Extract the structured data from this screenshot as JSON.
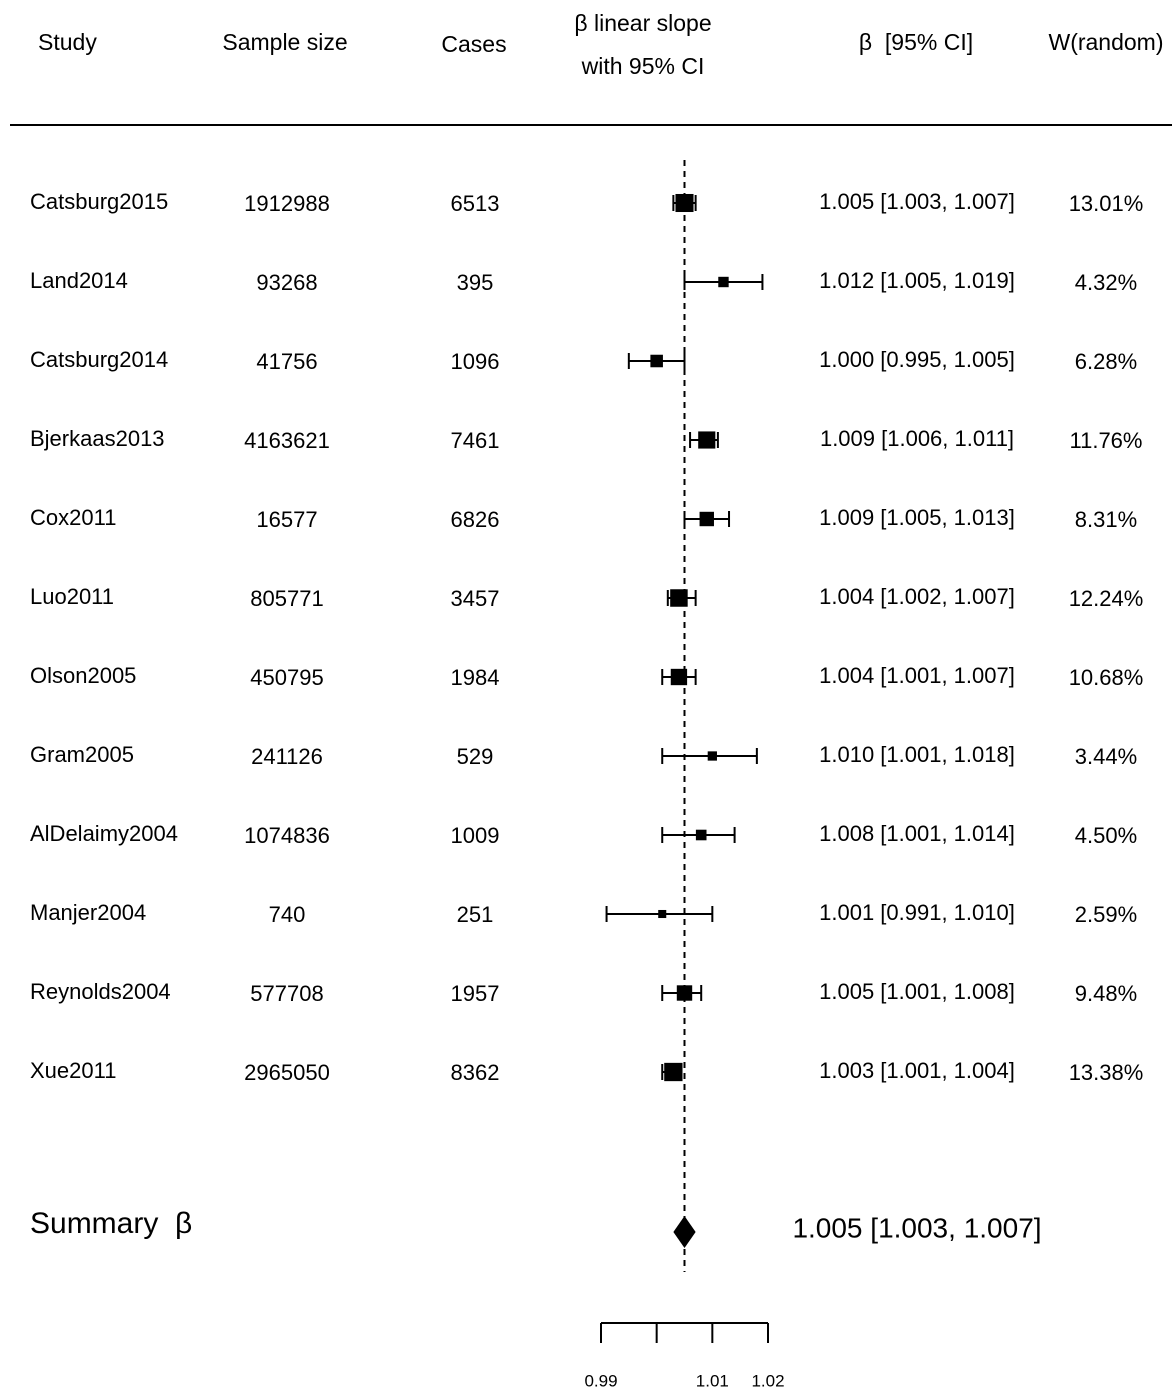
{
  "chart_data": {
    "type": "forest",
    "headers": {
      "study": "Study",
      "sample_size": "Sample size",
      "cases": "Cases",
      "plot": [
        "β linear slope",
        "with 95% CI"
      ],
      "ci": "β  [95% CI]",
      "weight": "W(random)"
    },
    "studies": [
      "Catsburg2015",
      "Land2014",
      "Catsburg2014",
      "Bjerkaas2013",
      "Cox2011",
      "Luo2011",
      "Olson2005",
      "Gram2005",
      "AlDelaimy2004",
      "Manjer2004",
      "Reynolds2004",
      "Xue2011"
    ],
    "sample_sizes": [
      1912988,
      93268,
      41756,
      4163621,
      16577,
      805771,
      450795,
      241126,
      1074836,
      740,
      577708,
      2965050
    ],
    "cases": [
      6513,
      395,
      1096,
      7461,
      6826,
      3457,
      1984,
      529,
      1009,
      251,
      1957,
      8362
    ],
    "estimates": [
      1.005,
      1.012,
      1.0,
      1.009,
      1.009,
      1.004,
      1.004,
      1.01,
      1.008,
      1.001,
      1.005,
      1.003
    ],
    "lower": [
      1.003,
      1.005,
      0.995,
      1.006,
      1.005,
      1.002,
      1.001,
      1.001,
      1.001,
      0.991,
      1.001,
      1.001
    ],
    "upper": [
      1.007,
      1.019,
      1.005,
      1.011,
      1.013,
      1.007,
      1.007,
      1.018,
      1.014,
      1.01,
      1.008,
      1.004
    ],
    "ci_labels": [
      "1.005 [1.003, 1.007]",
      "1.012 [1.005, 1.019]",
      "1.000 [0.995, 1.005]",
      "1.009 [1.006, 1.011]",
      "1.009 [1.005, 1.013]",
      "1.004 [1.002, 1.007]",
      "1.004 [1.001, 1.007]",
      "1.010 [1.001, 1.018]",
      "1.008 [1.001, 1.014]",
      "1.001 [0.991, 1.010]",
      "1.005 [1.001, 1.008]",
      "1.003 [1.001, 1.004]"
    ],
    "weights": [
      13.01,
      4.32,
      6.28,
      11.76,
      8.31,
      12.24,
      10.68,
      3.44,
      4.5,
      2.59,
      9.48,
      13.38
    ],
    "weight_labels": [
      "13.01%",
      "4.32%",
      "6.28%",
      "11.76%",
      "8.31%",
      "12.24%",
      "10.68%",
      "3.44%",
      "4.50%",
      "2.59%",
      "9.48%",
      "13.38%"
    ],
    "summary": {
      "label": "Summary  β",
      "estimate": 1.005,
      "lower": 1.003,
      "upper": 1.007,
      "ci_label": "1.005 [1.003, 1.007]"
    },
    "xlim": [
      0.99,
      1.02
    ],
    "xticks": [
      0.99,
      {
        "value": 1,
        "label": null
      },
      1.01,
      1.02
    ],
    "color": "#000000"
  }
}
